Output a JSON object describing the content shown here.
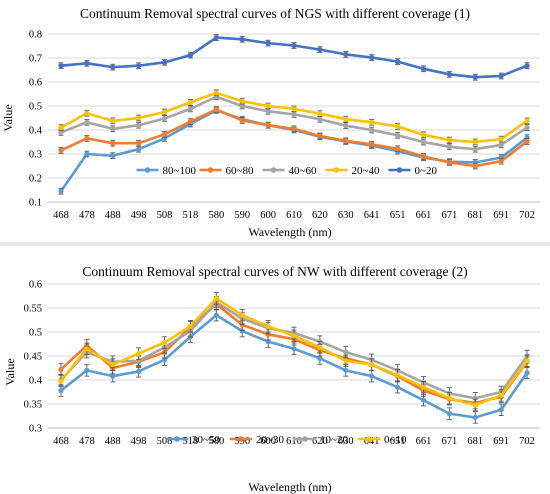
{
  "chart_data": [
    {
      "type": "line",
      "title": "Continuum Removal spectral curves of  NGS with different coverage (1)",
      "xlabel": "Wavelength (nm)",
      "ylabel": "Value",
      "categories": [
        "468",
        "478",
        "488",
        "498",
        "508",
        "518",
        "580",
        "590",
        "600",
        "610",
        "620",
        "630",
        "641",
        "651",
        "661",
        "671",
        "681",
        "691",
        "702"
      ],
      "ylim": [
        0.1,
        0.8
      ],
      "yticks": [
        "0.1",
        "0.2",
        "0.3",
        "0.4",
        "0.5",
        "0.6",
        "0.7",
        "0.8"
      ],
      "grid": true,
      "legend_position": "bottom",
      "error_bar": 0.012,
      "series": [
        {
          "name": "80~100",
          "color": "#5b9bd5",
          "values": [
            0.145,
            0.3,
            0.293,
            0.32,
            0.365,
            0.425,
            0.482,
            0.445,
            0.42,
            0.4,
            0.372,
            0.352,
            0.335,
            0.312,
            0.285,
            0.268,
            0.265,
            0.285,
            0.368
          ]
        },
        {
          "name": "60~80",
          "color": "#ed7d31",
          "values": [
            0.315,
            0.365,
            0.345,
            0.345,
            0.382,
            0.435,
            0.485,
            0.44,
            0.42,
            0.405,
            0.375,
            0.355,
            0.34,
            0.322,
            0.29,
            0.265,
            0.25,
            0.27,
            0.352
          ]
        },
        {
          "name": "40~60",
          "color": "#a5a5a5",
          "values": [
            0.39,
            0.432,
            0.405,
            0.42,
            0.448,
            0.488,
            0.538,
            0.5,
            0.478,
            0.465,
            0.445,
            0.418,
            0.4,
            0.378,
            0.35,
            0.33,
            0.32,
            0.338,
            0.41
          ]
        },
        {
          "name": "20~40",
          "color": "#ffc000",
          "values": [
            0.41,
            0.47,
            0.438,
            0.45,
            0.475,
            0.515,
            0.555,
            0.52,
            0.5,
            0.488,
            0.468,
            0.445,
            0.432,
            0.415,
            0.38,
            0.358,
            0.35,
            0.362,
            0.438
          ]
        },
        {
          "name": "0~20",
          "color": "#4472c4",
          "values": [
            0.668,
            0.678,
            0.662,
            0.668,
            0.682,
            0.712,
            0.785,
            0.778,
            0.762,
            0.752,
            0.735,
            0.715,
            0.702,
            0.685,
            0.655,
            0.632,
            0.62,
            0.625,
            0.668
          ]
        }
      ]
    },
    {
      "type": "line",
      "title": "Continuum Removal spectral curves of  NW with different coverage (2)",
      "xlabel": "Wavelength (nm)",
      "ylabel": "Value",
      "categories": [
        "468",
        "478",
        "488",
        "498",
        "508",
        "518",
        "580",
        "590",
        "600",
        "610",
        "620",
        "630",
        "641",
        "651",
        "661",
        "671",
        "681",
        "691",
        "702"
      ],
      "ylim": [
        0.3,
        0.6
      ],
      "yticks": [
        "0.3",
        "0.35",
        "0.4",
        "0.45",
        "0.5",
        "0.55",
        "0.6"
      ],
      "grid": true,
      "legend_position": "bottom",
      "error_bar": 0.012,
      "series": [
        {
          "name": "30~50",
          "color": "#5b9bd5",
          "values": [
            0.378,
            0.42,
            0.408,
            0.418,
            0.442,
            0.49,
            0.535,
            0.502,
            0.48,
            0.465,
            0.445,
            0.42,
            0.408,
            0.385,
            0.358,
            0.33,
            0.322,
            0.338,
            0.415
          ]
        },
        {
          "name": "20~30",
          "color": "#ed7d31",
          "values": [
            0.422,
            0.472,
            0.425,
            0.438,
            0.458,
            0.51,
            0.558,
            0.515,
            0.495,
            0.485,
            0.462,
            0.445,
            0.432,
            0.408,
            0.378,
            0.36,
            0.352,
            0.365,
            0.438
          ]
        },
        {
          "name": "10~20",
          "color": "#a5a5a5",
          "values": [
            0.4,
            0.458,
            0.438,
            0.44,
            0.468,
            0.502,
            0.562,
            0.528,
            0.508,
            0.498,
            0.48,
            0.458,
            0.442,
            0.42,
            0.395,
            0.372,
            0.362,
            0.375,
            0.45
          ]
        },
        {
          "name": "0~10",
          "color": "#ffc000",
          "values": [
            0.398,
            0.465,
            0.432,
            0.455,
            0.478,
            0.512,
            0.57,
            0.535,
            0.512,
            0.492,
            0.468,
            0.44,
            0.432,
            0.41,
            0.385,
            0.362,
            0.348,
            0.368,
            0.44
          ]
        }
      ]
    }
  ]
}
